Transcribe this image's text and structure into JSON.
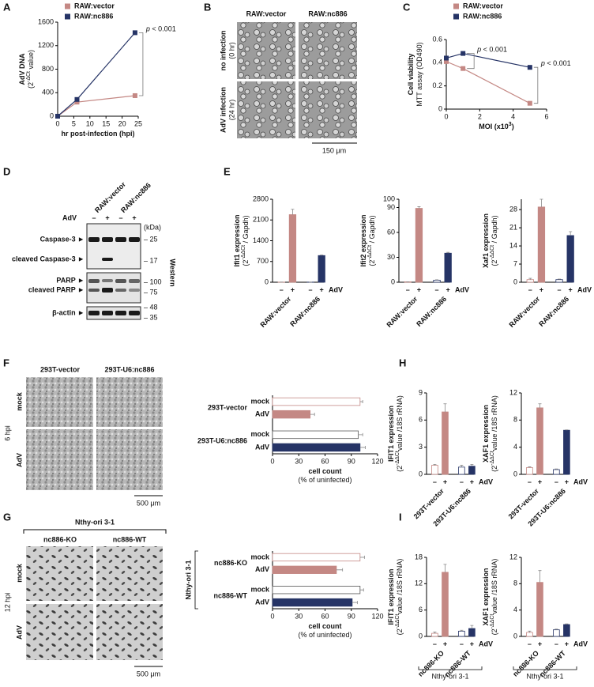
{
  "panel_labels": [
    "A",
    "B",
    "C",
    "D",
    "E",
    "F",
    "H",
    "G",
    "I"
  ],
  "micrograph_B": {
    "columns": [
      "RAW:vector",
      "RAW:nc886"
    ],
    "rows": [
      [
        "no infection",
        "(0 hr)"
      ],
      [
        "AdV infection",
        "(24 hr)"
      ]
    ],
    "scale_bar": "150 μm"
  },
  "western": {
    "columns": [
      "RAW:vector",
      "RAW:nc886"
    ],
    "treatment": "AdV",
    "signs": [
      "–",
      "+",
      "–",
      "+"
    ],
    "bands": [
      "Caspase-3 ►",
      "cleaved Caspase-3 ►",
      "PARP ►",
      "cleaved PARP ►",
      "β-actin ►"
    ],
    "unit": "(kDa)",
    "markers": [
      "– 25",
      "– 17",
      "– 100",
      "– 75",
      "– 48",
      "– 35"
    ],
    "method": "Western"
  },
  "micrograph_F": {
    "columns": [
      "293T-vector",
      "293T-U6:nc886"
    ],
    "rows": [
      "mock",
      "AdV"
    ],
    "time": "6 hpi",
    "scale_bar": "500 μm"
  },
  "micrograph_G": {
    "header": "Nthy-ori 3-1",
    "columns": [
      "nc886-KO",
      "nc886-WT"
    ],
    "rows": [
      "mock",
      "AdV"
    ],
    "time": "12 hpi",
    "scale_bar": "500 μm"
  },
  "chart_data": [
    {
      "type": "line",
      "legend": "upper left",
      "x": [
        0,
        6,
        24
      ],
      "xlim": [
        0,
        25
      ],
      "xticks": [
        0,
        5,
        10,
        15,
        20,
        25
      ],
      "ylim": [
        0,
        1600
      ],
      "yticks": [
        0,
        400,
        800,
        1200,
        1600
      ],
      "ylabel": [
        "AdV DNA"
      ],
      "ylabel_note": [
        "(2",
        "-ΔCt",
        " value)"
      ],
      "xlabel": [
        "hr post-infection (hpi)"
      ],
      "series": [
        {
          "name": "RAW:vector",
          "color": "#c48884",
          "values": [
            0,
            240,
            350
          ]
        },
        {
          "name": "RAW:nc886",
          "color": "#263466",
          "values": [
            0,
            285,
            1420
          ]
        }
      ],
      "annotations": [
        [
          "p",
          " < 0.001"
        ]
      ]
    },
    {
      "type": "line",
      "legend": "upper left",
      "x": [
        0,
        1,
        5
      ],
      "xlim": [
        0,
        6
      ],
      "xticks": [
        0,
        2,
        4,
        6
      ],
      "ylim": [
        0,
        0.6
      ],
      "yticks": [
        0,
        0.2,
        0.4,
        0.6
      ],
      "ylabel": [
        "Cell viability"
      ],
      "ylabel_note": [
        "MTT assay (OD490)"
      ],
      "xlabel": [
        "MOI (x10",
        "3",
        ")"
      ],
      "series": [
        {
          "name": "RAW:vector",
          "color": "#c48884",
          "values": [
            0.41,
            0.35,
            0.05
          ]
        },
        {
          "name": "RAW:nc886",
          "color": "#263466",
          "values": [
            0.44,
            0.48,
            0.36
          ]
        }
      ],
      "annotations": [
        [
          "p",
          " < 0.001"
        ],
        [
          "p",
          " < 0.001"
        ]
      ]
    },
    {
      "type": "bar",
      "ylim": [
        0,
        2800
      ],
      "yticks": [
        0,
        700,
        1400,
        2100,
        2800
      ],
      "ylabel": [
        "Ifit1 expression"
      ],
      "ylabel_note": [
        "(2",
        "-ΔΔCt",
        " / Gapdh)"
      ],
      "categories": [
        "–",
        "+",
        "–",
        "+"
      ],
      "groups": [
        "RAW:vector",
        "RAW:nc886"
      ],
      "factor": "AdV",
      "values": [
        5,
        2280,
        5,
        900
      ],
      "errors": [
        0,
        180,
        0,
        20
      ],
      "colors": [
        "#ffffff",
        "#c48884",
        "#ffffff",
        "#263466"
      ],
      "edgecolors": [
        "#c48884",
        "#c48884",
        "#263466",
        "#263466"
      ]
    },
    {
      "type": "bar",
      "ylim": [
        0,
        100
      ],
      "yticks": [
        0,
        30,
        60,
        90,
        100
      ],
      "ylabel": [
        "Ifit2 expression"
      ],
      "ylabel_note": [
        "(2",
        "-ΔΔCt",
        " / Gapdh)"
      ],
      "categories": [
        "–",
        "+",
        "–",
        "+"
      ],
      "groups": [
        "RAW:vector",
        "RAW:nc886"
      ],
      "factor": "AdV",
      "values": [
        0.5,
        89,
        2.5,
        35
      ],
      "errors": [
        0,
        2,
        0.5,
        1
      ],
      "colors": [
        "#ffffff",
        "#c48884",
        "#ffffff",
        "#263466"
      ],
      "edgecolors": [
        "#c48884",
        "#c48884",
        "#263466",
        "#263466"
      ]
    },
    {
      "type": "bar",
      "ylim": [
        0,
        32
      ],
      "yticks": [
        0,
        7,
        14,
        21,
        28
      ],
      "ylabel": [
        "Xaf1 expression"
      ],
      "ylabel_note": [
        "(2",
        "-ΔΔCt",
        " / Gapdh)"
      ],
      "categories": [
        "–",
        "+",
        "–",
        "+"
      ],
      "groups": [
        "RAW:vector",
        "RAW:nc886"
      ],
      "factor": "AdV",
      "values": [
        1,
        29,
        1,
        18
      ],
      "errors": [
        0.5,
        3,
        0.2,
        1.5
      ],
      "colors": [
        "#ffffff",
        "#c48884",
        "#ffffff",
        "#263466"
      ],
      "edgecolors": [
        "#c48884",
        "#c48884",
        "#263466",
        "#263466"
      ]
    },
    {
      "type": "hbar",
      "xlim": [
        0,
        120
      ],
      "xticks": [
        0,
        30,
        60,
        90,
        120
      ],
      "xlabel": [
        "cell count"
      ],
      "xlabel_note": [
        "(% of uninfected)"
      ],
      "groups": [
        "293T-vector",
        "293T-U6:nc886"
      ],
      "categories": [
        "mock",
        "AdV",
        "mock",
        "AdV"
      ],
      "values": [
        100,
        43,
        98,
        100
      ],
      "errors": [
        3,
        5,
        5,
        6
      ],
      "colors": [
        "#ffffff",
        "#c48884",
        "#ffffff",
        "#263466"
      ],
      "edgecolors": [
        "#c48884",
        "#c48884",
        "#555555",
        "#263466"
      ]
    },
    {
      "type": "bar",
      "ylim": [
        0,
        9
      ],
      "yticks": [
        0,
        3,
        6,
        9
      ],
      "ylabel": [
        "IFIT1 expression"
      ],
      "ylabel_note": [
        "(2",
        "-ΔΔCt",
        "value /18S rRNA)"
      ],
      "categories": [
        "–",
        "+",
        "–",
        "+"
      ],
      "groups": [
        "293T-vector",
        "293T-U6:nc886"
      ],
      "factor": "AdV",
      "values": [
        1,
        6.9,
        0.8,
        0.9
      ],
      "errors": [
        0.1,
        0.9,
        0.2,
        0.2
      ],
      "colors": [
        "#ffffff",
        "#c48884",
        "#ffffff",
        "#263466"
      ],
      "edgecolors": [
        "#c48884",
        "#c48884",
        "#263466",
        "#263466"
      ]
    },
    {
      "type": "bar",
      "ylim": [
        0,
        12
      ],
      "yticks": [
        0,
        4,
        8,
        12
      ],
      "ylabel": [
        "XAF1 expression"
      ],
      "ylabel_note": [
        "(2",
        "-ΔΔCt",
        "value /18S rRNA)"
      ],
      "categories": [
        "–",
        "+",
        "–",
        "+"
      ],
      "groups": [
        "293T-vector",
        "293T-U6:nc886"
      ],
      "factor": "AdV",
      "values": [
        1,
        9.8,
        0.7,
        6.5
      ],
      "errors": [
        0.1,
        0.6,
        0.1,
        0.05
      ],
      "colors": [
        "#ffffff",
        "#c48884",
        "#ffffff",
        "#263466"
      ],
      "edgecolors": [
        "#c48884",
        "#c48884",
        "#263466",
        "#263466"
      ]
    },
    {
      "type": "hbar",
      "xlim": [
        0,
        120
      ],
      "xticks": [
        0,
        30,
        60,
        90,
        120
      ],
      "xlabel": [
        "cell count"
      ],
      "xlabel_note": [
        "(% of uninfected)"
      ],
      "bracket": "Nthy-ori 3-1",
      "groups": [
        "nc886-KO",
        "nc886-WT"
      ],
      "categories": [
        "mock",
        "AdV",
        "mock",
        "AdV"
      ],
      "values": [
        100,
        73,
        100,
        91
      ],
      "errors": [
        5,
        7,
        4,
        6
      ],
      "colors": [
        "#ffffff",
        "#c48884",
        "#ffffff",
        "#263466"
      ],
      "edgecolors": [
        "#c48884",
        "#c48884",
        "#555555",
        "#263466"
      ]
    },
    {
      "type": "bar",
      "ylim": [
        0,
        18
      ],
      "yticks": [
        0,
        6,
        12,
        18
      ],
      "ylabel": [
        "IFIT1 expression"
      ],
      "ylabel_note": [
        "(2",
        "-ΔΔCt",
        "value /18S rRNA)"
      ],
      "categories": [
        "–",
        "+",
        "–",
        "+"
      ],
      "groups": [
        "nc886-KO",
        "nc886-WT"
      ],
      "factor": "AdV",
      "footer": "Nthy-ori 3-1",
      "values": [
        0.7,
        14.6,
        1.2,
        1.8
      ],
      "errors": [
        0.3,
        1.8,
        0.2,
        0.7
      ],
      "colors": [
        "#ffffff",
        "#c48884",
        "#ffffff",
        "#263466"
      ],
      "edgecolors": [
        "#c48884",
        "#c48884",
        "#263466",
        "#263466"
      ]
    },
    {
      "type": "bar",
      "ylim": [
        0,
        12
      ],
      "yticks": [
        0,
        4,
        8,
        12
      ],
      "ylabel": [
        "XAF1 expression"
      ],
      "ylabel_note": [
        "(2",
        "-ΔΔCt",
        "value /18S rRNA)"
      ],
      "categories": [
        "–",
        "+",
        "–",
        "+"
      ],
      "groups": [
        "nc886-KO",
        "nc886-WT"
      ],
      "factor": "AdV",
      "footer": "Nthy-ori 3-1",
      "values": [
        0.6,
        8.2,
        1.0,
        1.8
      ],
      "errors": [
        0.2,
        1.8,
        0.1,
        0.1
      ],
      "colors": [
        "#ffffff",
        "#c48884",
        "#ffffff",
        "#263466"
      ],
      "edgecolors": [
        "#c48884",
        "#c48884",
        "#263466",
        "#263466"
      ]
    }
  ]
}
